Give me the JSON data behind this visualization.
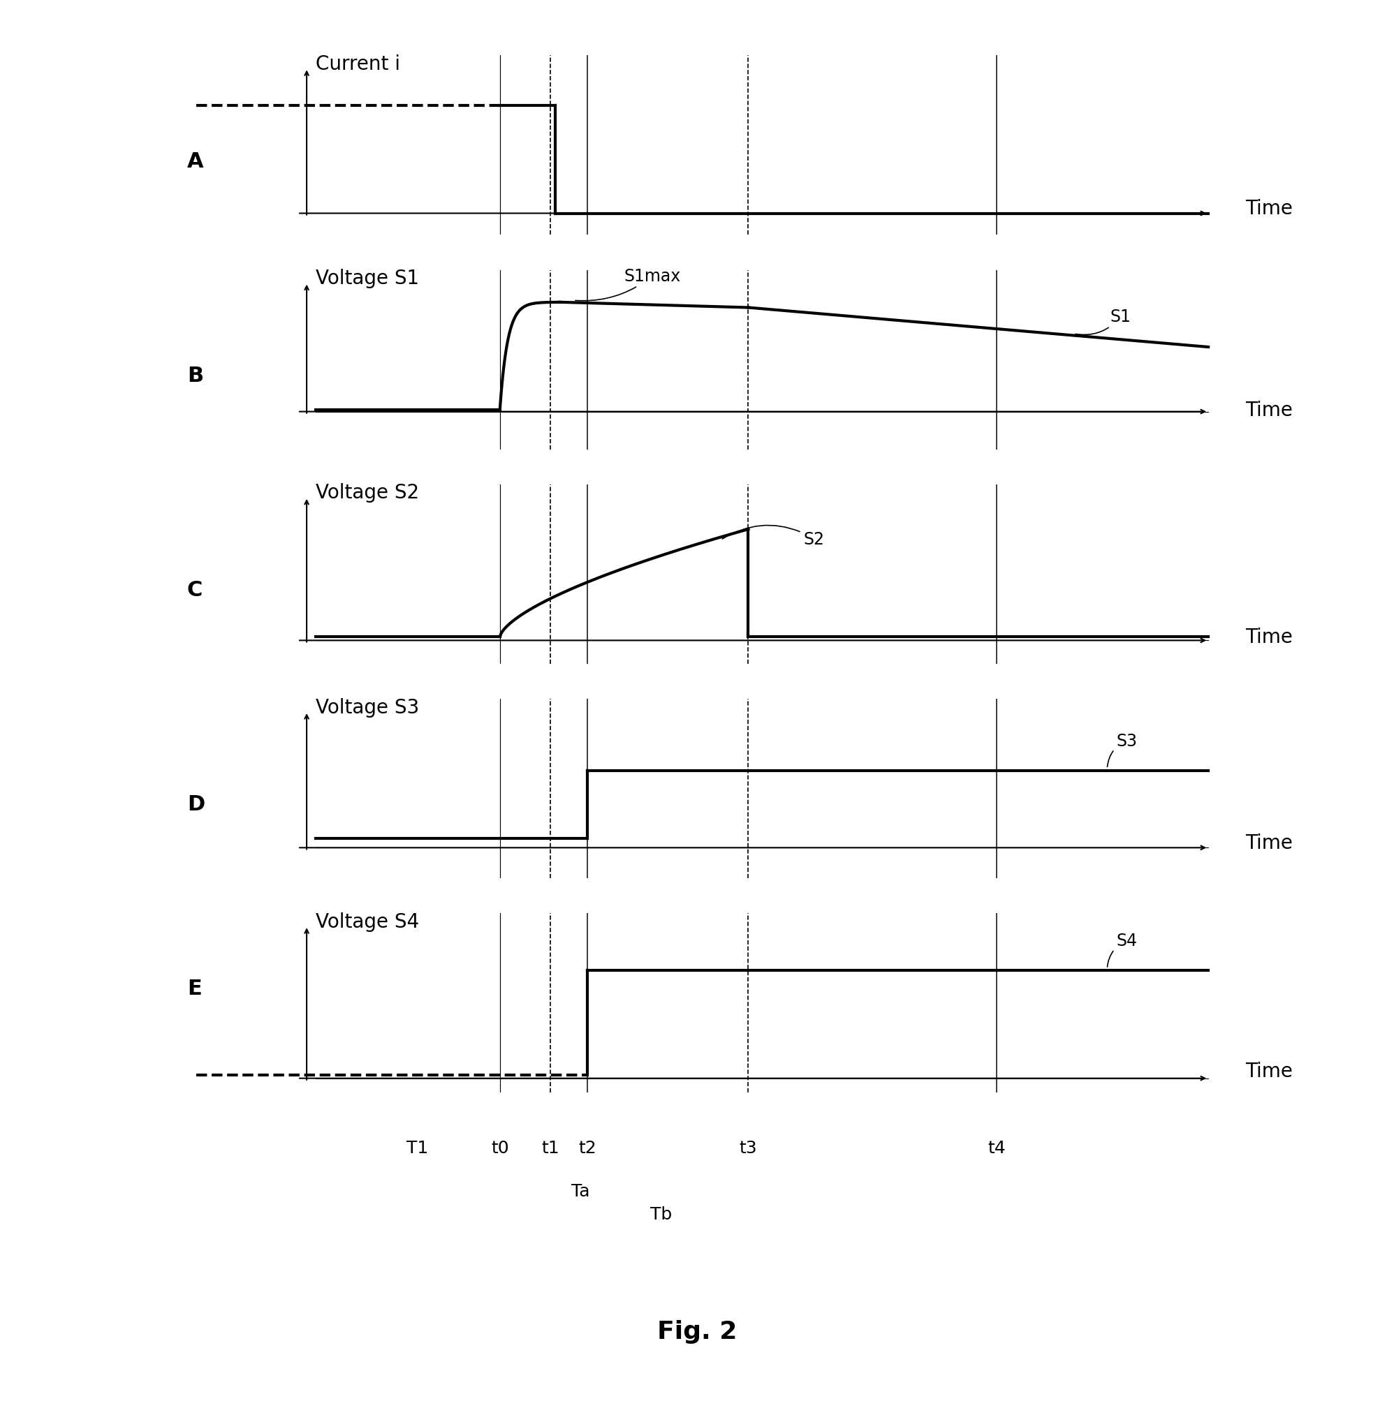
{
  "fig_title": "Fig. 2",
  "panel_labels": [
    "A",
    "B",
    "C",
    "D",
    "E"
  ],
  "y_labels": [
    "Current i",
    "Voltage S1",
    "Voltage S2",
    "Voltage S3",
    "Voltage S4"
  ],
  "time_labels": [
    "T1",
    "t0",
    "t1",
    "t2",
    "t3",
    "t4"
  ],
  "t_T1": 0.12,
  "t_t0": 0.21,
  "t_t1": 0.265,
  "t_t2": 0.305,
  "t_t3": 0.48,
  "t_t4": 0.75,
  "background_color": "#ffffff",
  "lw_signal": 3.0,
  "lw_axis": 1.5,
  "lw_vline": 1.2,
  "fontsize_label": 20,
  "fontsize_panel": 22,
  "fontsize_time": 18,
  "fontsize_signal": 17,
  "fontsize_figtitle": 26
}
